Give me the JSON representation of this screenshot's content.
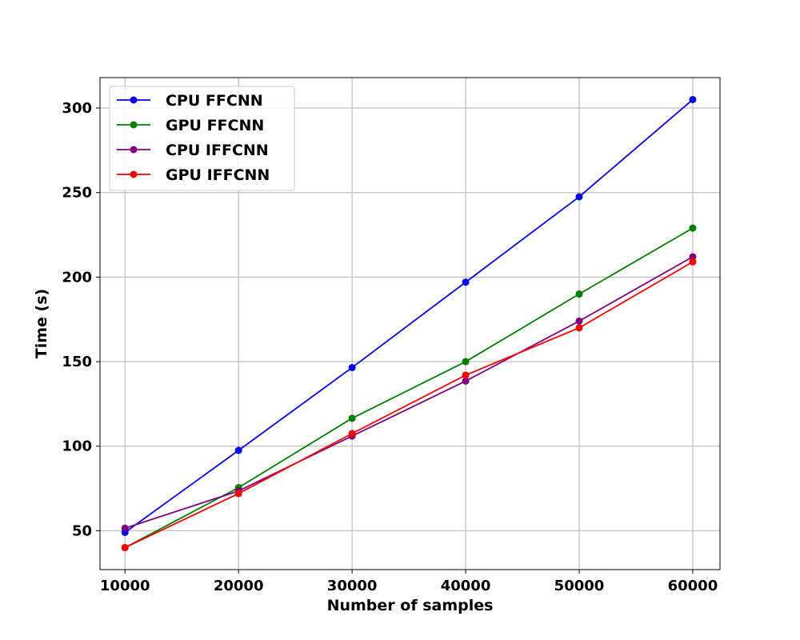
{
  "chart_data": {
    "type": "line",
    "title": "",
    "xlabel": "Number of samples",
    "ylabel": "Time (s)",
    "x": [
      10000,
      20000,
      30000,
      40000,
      50000,
      60000
    ],
    "xlim": [
      7800,
      62400
    ],
    "ylim": [
      27,
      318
    ],
    "xticks": [
      "10000",
      "20000",
      "30000",
      "40000",
      "50000",
      "60000"
    ],
    "yticks": [
      "50",
      "100",
      "150",
      "200",
      "250",
      "300"
    ],
    "grid": true,
    "legend_position": "upper-left",
    "series": [
      {
        "name": "CPU FFCNN",
        "color": "#0000ff",
        "values": [
          49,
          97.5,
          146.5,
          197,
          247.5,
          305
        ]
      },
      {
        "name": "GPU FFCNN",
        "color": "#008000",
        "values": [
          40,
          75.5,
          116.5,
          150,
          190,
          229
        ]
      },
      {
        "name": "CPU IFFCNN",
        "color": "#800080",
        "values": [
          51.5,
          73.5,
          106,
          138.5,
          174,
          212
        ]
      },
      {
        "name": "GPU IFFCNN",
        "color": "#ff0000",
        "values": [
          40,
          72,
          107.5,
          142,
          170,
          209
        ]
      }
    ]
  }
}
